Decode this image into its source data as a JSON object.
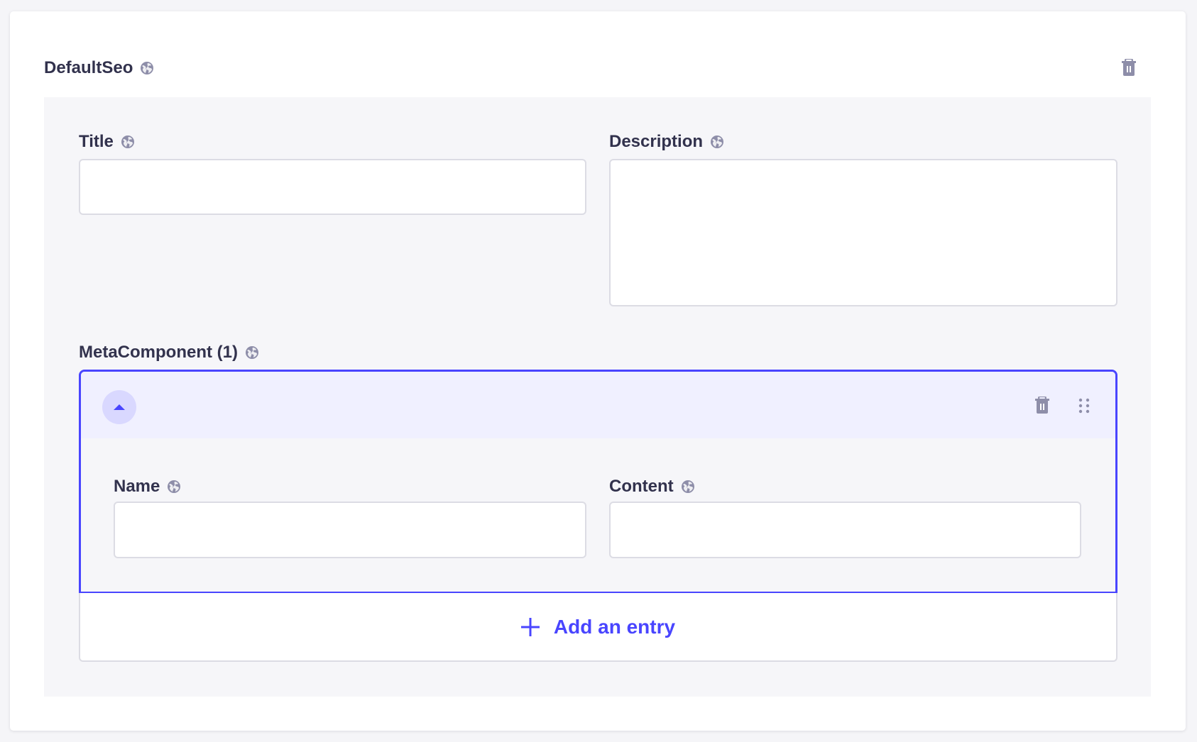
{
  "component": {
    "title": "DefaultSeo",
    "icons": {
      "localized": "globe-icon",
      "delete": "trash-icon"
    }
  },
  "fields": {
    "title": {
      "label": "Title",
      "value": ""
    },
    "description": {
      "label": "Description",
      "value": ""
    }
  },
  "repeatable": {
    "label": "MetaComponent (1)",
    "entry": {
      "name": {
        "label": "Name",
        "value": ""
      },
      "content": {
        "label": "Content",
        "value": ""
      }
    },
    "add_label": "Add an entry"
  },
  "colors": {
    "accent": "#4945ff",
    "icon": "#8e8ea9",
    "text": "#32324d"
  }
}
